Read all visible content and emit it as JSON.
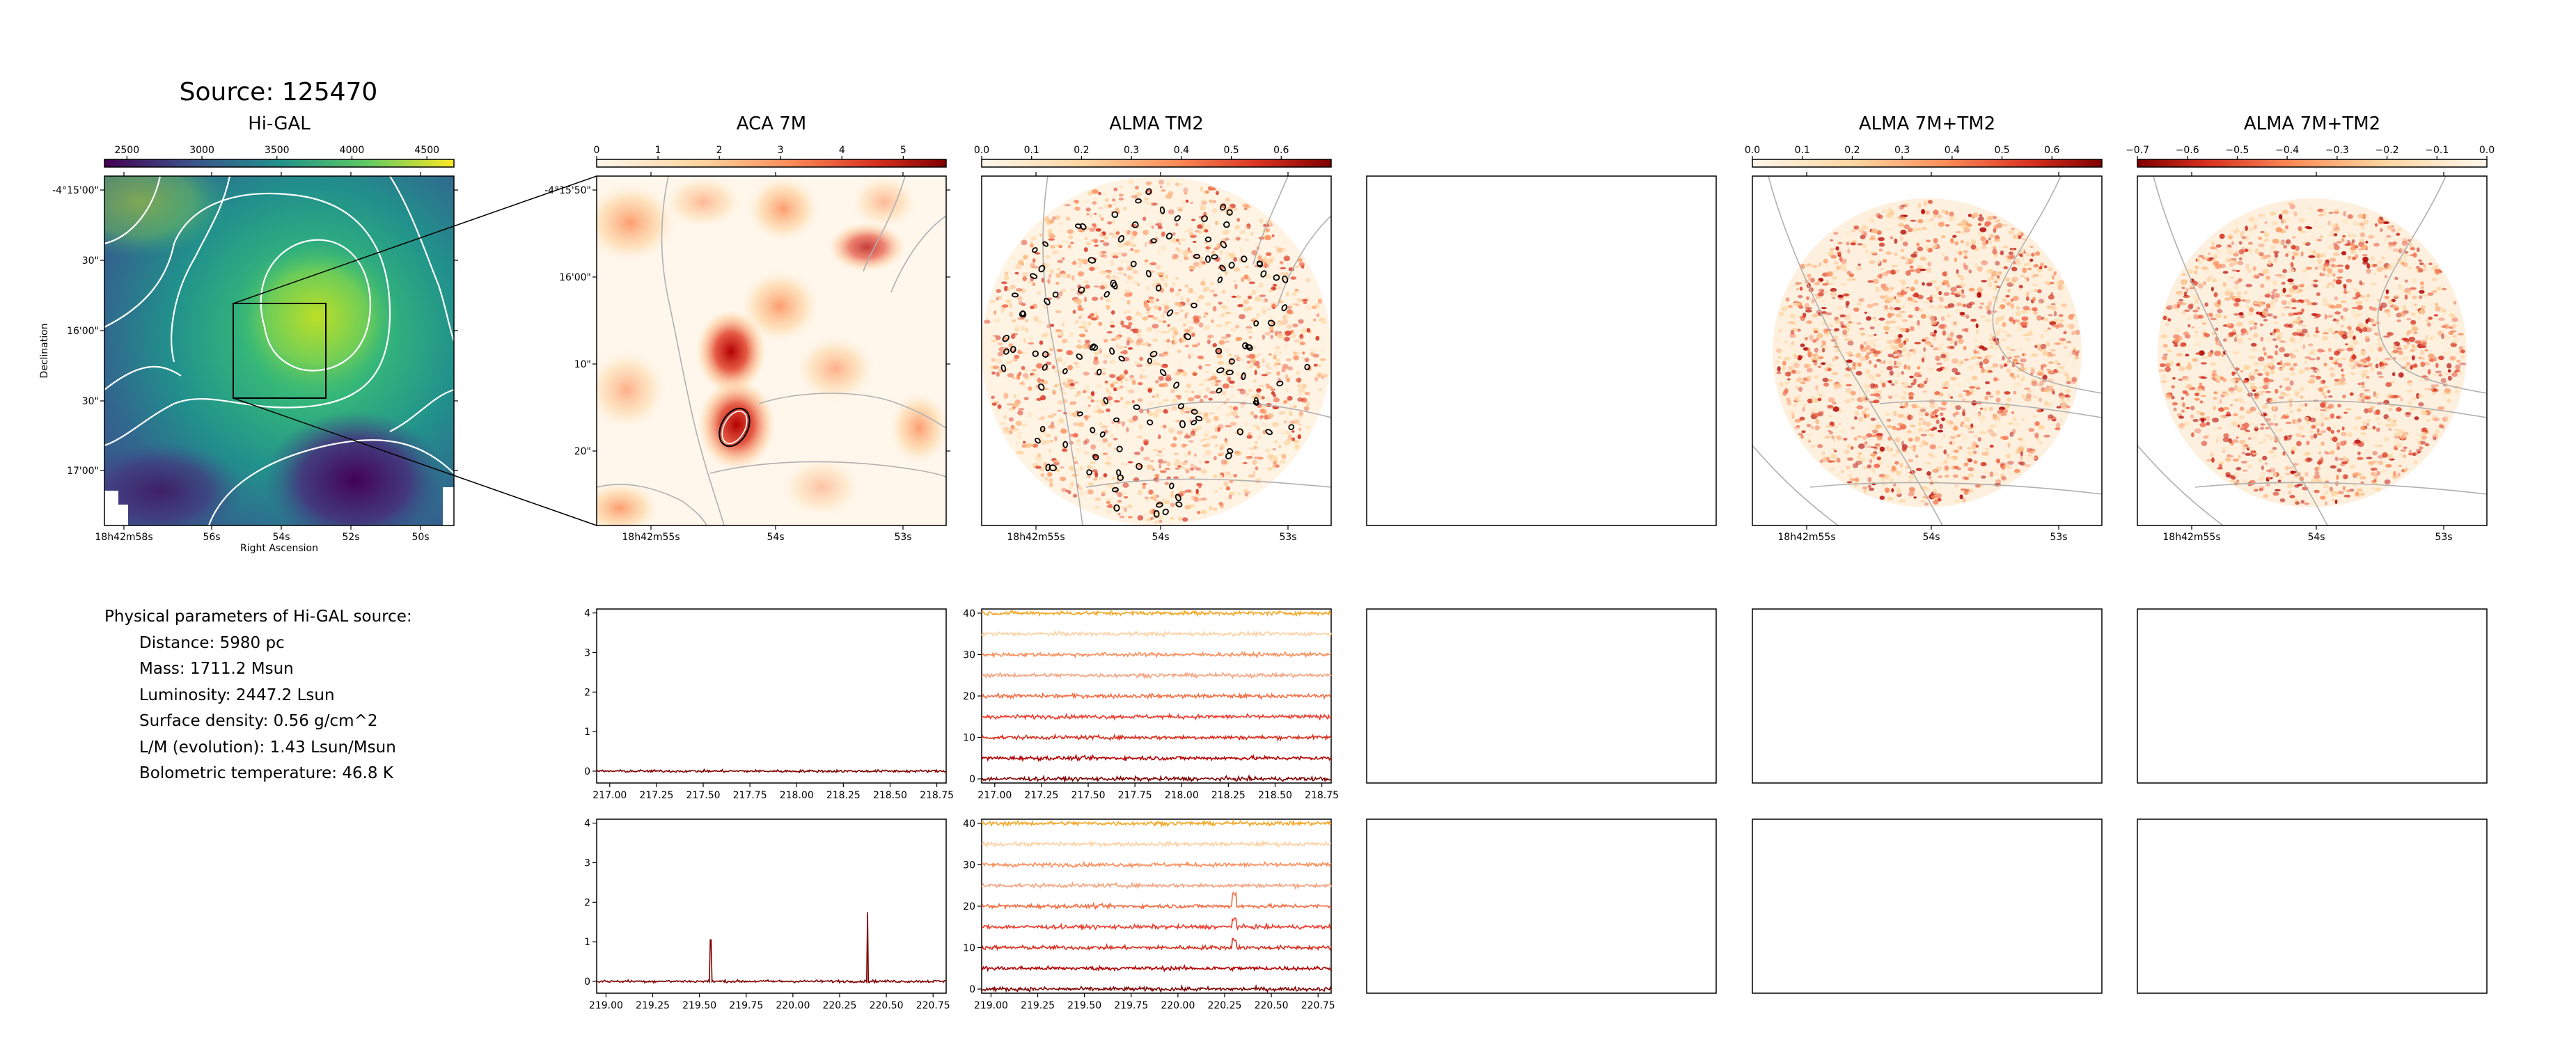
{
  "figure": {
    "source_title": "Source: 125470"
  },
  "parameters": {
    "heading": "Physical parameters of Hi-GAL source:",
    "lines": [
      "Distance: 5980 pc",
      "Mass: 1711.2 Msun",
      "Luminosity: 2447.2 Lsun",
      "Surface density: 0.56 g/cm^2",
      "L/M (evolution): 1.43 Lsun/Msun",
      "Bolometric temperature: 46.8 K"
    ]
  },
  "colors": {
    "axes": "#000000",
    "contour": "#ffffff",
    "gray_contour": "#b0b0b0",
    "spectrum_dark": "#7f0000"
  },
  "chart_data": [
    {
      "type": "heatmap",
      "title": "Hi-GAL",
      "colormap": "viridis",
      "colorbar": {
        "ticks": [
          "2500",
          "3000",
          "3500",
          "4000",
          "4500"
        ],
        "range": [
          2350,
          4680
        ]
      },
      "xlabel": "Right Ascension",
      "ylabel": "Declination",
      "xticks": [
        "18h42m58s",
        "56s",
        "54s",
        "52s",
        "50s"
      ],
      "yticks": [
        "-4°15'00\"",
        "30\"",
        "16'00\"",
        "30\"",
        "17'00\""
      ],
      "contours": true,
      "inset_box": true
    },
    {
      "type": "heatmap",
      "title": "ACA 7M",
      "colormap": "OrRd",
      "colorbar": {
        "ticks": [
          "0",
          "1",
          "2",
          "3",
          "4",
          "5"
        ],
        "range": [
          0,
          5.7
        ]
      },
      "xticks": [
        "18h42m55s",
        "54s",
        "53s"
      ],
      "yticks": [
        "-4°15'50\"",
        "16'00\"",
        "10\"",
        "20\""
      ]
    },
    {
      "type": "heatmap",
      "title": "ALMA TM2",
      "colormap": "OrRd",
      "colorbar": {
        "ticks": [
          "0.0",
          "0.1",
          "0.2",
          "0.3",
          "0.4",
          "0.5",
          "0.6"
        ],
        "range": [
          0,
          0.7
        ]
      },
      "xticks": [
        "18h42m55s",
        "54s",
        "53s"
      ]
    },
    {
      "type": "heatmap",
      "title": "ALMA 7M+TM2",
      "colormap": "OrRd",
      "colorbar": {
        "ticks": [
          "0.0",
          "0.1",
          "0.2",
          "0.3",
          "0.4",
          "0.5",
          "0.6"
        ],
        "range": [
          0,
          0.7
        ]
      },
      "xticks": [
        "18h42m55s",
        "54s",
        "53s"
      ]
    },
    {
      "type": "heatmap",
      "title": "ALMA 7M+TM2",
      "colormap": "OrRd_r",
      "colorbar": {
        "ticks": [
          "−0.7",
          "−0.6",
          "−0.5",
          "−0.4",
          "−0.3",
          "−0.2",
          "−0.1",
          "0.0"
        ],
        "range": [
          -0.7,
          0
        ]
      },
      "xticks": [
        "18h42m55s",
        "54s",
        "53s"
      ]
    },
    {
      "type": "line",
      "panel": "ACA 7M spectrum (upper)",
      "xlim": [
        216.93,
        218.8
      ],
      "ylim": [
        -0.3,
        4.1
      ],
      "xticks": [
        "217.00",
        "217.25",
        "217.50",
        "217.75",
        "218.00",
        "218.25",
        "218.50",
        "218.75"
      ],
      "yticks": [
        "0",
        "1",
        "2",
        "3",
        "4"
      ],
      "series": [
        {
          "baseline": 0,
          "peaks": []
        }
      ]
    },
    {
      "type": "line",
      "panel": "ALMA TM2 spectra (upper)",
      "xlim": [
        216.93,
        218.8
      ],
      "ylim": [
        -1,
        41
      ],
      "xticks": [
        "217.00",
        "217.25",
        "217.50",
        "217.75",
        "218.00",
        "218.25",
        "218.50",
        "218.75"
      ],
      "yticks": [
        "0",
        "10",
        "20",
        "30",
        "40"
      ],
      "offsets": [
        0,
        5,
        10,
        15,
        20,
        25,
        30,
        35,
        40
      ]
    },
    {
      "type": "line",
      "panel": "ACA 7M spectrum (lower)",
      "xlim": [
        218.95,
        220.82
      ],
      "ylim": [
        -0.3,
        4.1
      ],
      "xticks": [
        "219.00",
        "219.25",
        "219.50",
        "219.75",
        "220.00",
        "220.25",
        "220.50",
        "220.75"
      ],
      "yticks": [
        "0",
        "1",
        "2",
        "3",
        "4"
      ],
      "series": [
        {
          "baseline": 0,
          "peaks": [
            [
              219.56,
              1.05
            ],
            [
              220.4,
              1.75
            ]
          ]
        }
      ]
    },
    {
      "type": "line",
      "panel": "ALMA TM2 spectra (lower)",
      "xlim": [
        218.95,
        220.82
      ],
      "ylim": [
        -1,
        41
      ],
      "xticks": [
        "219.00",
        "219.25",
        "219.50",
        "219.75",
        "220.00",
        "220.25",
        "220.50",
        "220.75"
      ],
      "yticks": [
        "0",
        "10",
        "20",
        "30",
        "40"
      ],
      "offsets": [
        0,
        5,
        10,
        15,
        20,
        25,
        30,
        35,
        40
      ]
    }
  ]
}
